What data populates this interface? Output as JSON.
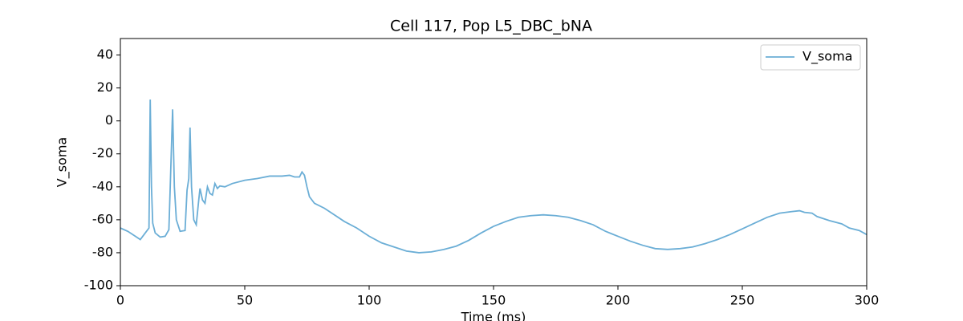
{
  "chart_data": {
    "type": "line",
    "title": "Cell 117, Pop L5_DBC_bNA",
    "x_label": "Time (ms)",
    "y_label": "V_soma",
    "xlim": [
      0,
      300
    ],
    "xticks": [
      0,
      50,
      100,
      150,
      200,
      250,
      300
    ],
    "ylim": [
      -100,
      50
    ],
    "yticks": [
      -100,
      -80,
      -60,
      -40,
      -20,
      0,
      20,
      40
    ],
    "legend": "upper right",
    "x": [
      0,
      3,
      6,
      8,
      10,
      11.5,
      12,
      12.5,
      13,
      14,
      16,
      18,
      19.5,
      20,
      21,
      21.7,
      22.5,
      24,
      26,
      26.8,
      27.5,
      28,
      28.6,
      29.5,
      30.5,
      31.5,
      32,
      33,
      34,
      35,
      36,
      37,
      38,
      39,
      40,
      42,
      45,
      50,
      55,
      60,
      65,
      68,
      70,
      72,
      73,
      74,
      75,
      76,
      78,
      82,
      85,
      90,
      95,
      100,
      105,
      110,
      115,
      120,
      125,
      130,
      135,
      140,
      145,
      150,
      155,
      160,
      165,
      170,
      175,
      180,
      185,
      190,
      195,
      200,
      205,
      210,
      215,
      220,
      225,
      230,
      235,
      240,
      245,
      250,
      255,
      260,
      265,
      270,
      273,
      275,
      278,
      280,
      285,
      290,
      293,
      297,
      300
    ],
    "series": [
      {
        "name": "V_soma",
        "color": "#6baed6",
        "values": [
          -65,
          -67,
          -70,
          -72,
          -68,
          -65,
          13,
          -40,
          -62,
          -68,
          -70.5,
          -70,
          -66,
          -42,
          7,
          -40,
          -60,
          -67,
          -66.5,
          -42,
          -35,
          -4,
          -40,
          -60,
          -63,
          -48,
          -41,
          -48,
          -50,
          -40,
          -44,
          -45,
          -38,
          -41,
          -39.5,
          -40,
          -38,
          -36,
          -35,
          -33.5,
          -33.5,
          -33,
          -34,
          -34,
          -31,
          -33,
          -40,
          -46,
          -50,
          -53,
          -56,
          -61,
          -65,
          -70,
          -74,
          -76.5,
          -79,
          -80,
          -79.5,
          -78,
          -76,
          -72.5,
          -68,
          -64,
          -61,
          -58.5,
          -57.5,
          -57,
          -57.5,
          -58.5,
          -60.5,
          -63,
          -67,
          -70,
          -73,
          -75.5,
          -77.5,
          -78,
          -77.5,
          -76.5,
          -74.5,
          -72,
          -69,
          -65.5,
          -62,
          -58.5,
          -56,
          -55,
          -54.5,
          -55.5,
          -56,
          -58,
          -60.5,
          -62.5,
          -65,
          -66.5,
          -69
        ]
      }
    ]
  }
}
